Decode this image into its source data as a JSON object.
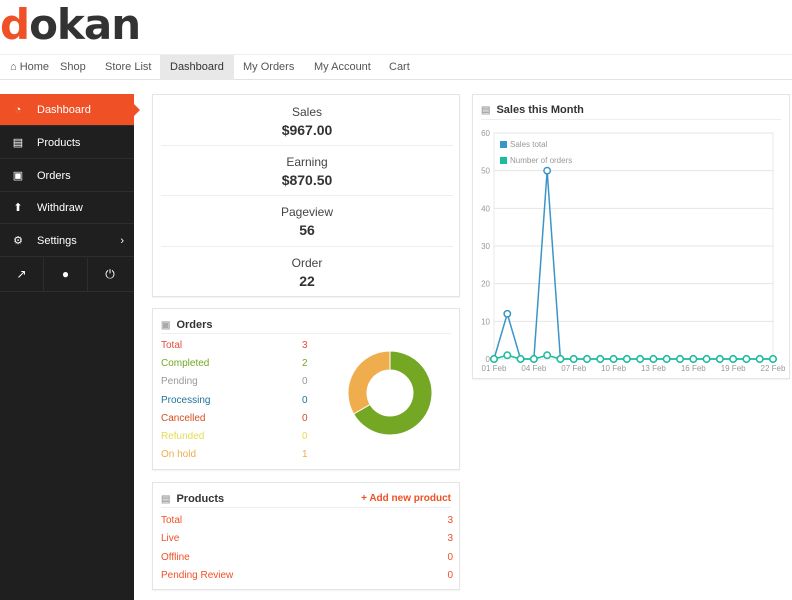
{
  "logo": {
    "first": "d",
    "rest": "okan"
  },
  "nav": [
    {
      "label": "⌂ Home",
      "key": "home"
    },
    {
      "label": "Shop",
      "key": "shop"
    },
    {
      "label": "Store List",
      "key": "store-list"
    },
    {
      "label": "Dashboard",
      "key": "dashboard"
    },
    {
      "label": "My Orders",
      "key": "my-orders"
    },
    {
      "label": "My Account",
      "key": "my-account"
    },
    {
      "label": "Cart",
      "key": "cart"
    }
  ],
  "sidebar": {
    "items": [
      {
        "label": "Dashboard",
        "icon": "dashboard-icon",
        "glyph": "◔"
      },
      {
        "label": "Products",
        "icon": "briefcase-icon",
        "glyph": "▤"
      },
      {
        "label": "Orders",
        "icon": "cart-icon",
        "glyph": "▣"
      },
      {
        "label": "Withdraw",
        "icon": "upload-icon",
        "glyph": "⬆"
      },
      {
        "label": "Settings",
        "icon": "gear-icon",
        "glyph": "⚙"
      }
    ],
    "settings_chevron": "›",
    "bottom_icons": [
      {
        "name": "external-link-icon",
        "glyph": "↗"
      },
      {
        "name": "user-icon",
        "glyph": "●"
      },
      {
        "name": "power-icon",
        "glyph": "⏻"
      }
    ]
  },
  "stats": [
    {
      "label": "Sales",
      "value": "$967.00"
    },
    {
      "label": "Earning",
      "value": "$870.50"
    },
    {
      "label": "Pageview",
      "value": "56"
    },
    {
      "label": "Order",
      "value": "22"
    }
  ],
  "orders": {
    "title": "Orders",
    "rows": [
      {
        "label": "Total",
        "count": "3",
        "color": "#e74c3c"
      },
      {
        "label": "Completed",
        "count": "2",
        "color": "#73a724"
      },
      {
        "label": "Pending",
        "count": "0",
        "color": "#999999"
      },
      {
        "label": "Processing",
        "count": "0",
        "color": "#21759b"
      },
      {
        "label": "Cancelled",
        "count": "0",
        "color": "#d54e21"
      },
      {
        "label": "Refunded",
        "count": "0",
        "color": "#e6db55"
      },
      {
        "label": "On hold",
        "count": "1",
        "color": "#f0ad4e"
      }
    ],
    "donut": [
      {
        "name": "Completed",
        "value": 2,
        "color": "#73a724"
      },
      {
        "name": "On hold",
        "value": 1,
        "color": "#f0ad4e"
      }
    ]
  },
  "products": {
    "title": "Products",
    "add_label": "+ Add new product",
    "rows": [
      {
        "label": "Total",
        "count": "3"
      },
      {
        "label": "Live",
        "count": "3"
      },
      {
        "label": "Offline",
        "count": "0"
      },
      {
        "label": "Pending Review",
        "count": "0"
      }
    ]
  },
  "sales_chart": {
    "title": "Sales this Month"
  },
  "chart_data": {
    "type": "line",
    "ylim": [
      0,
      60
    ],
    "yticks": [
      0,
      10,
      20,
      30,
      40,
      50,
      60
    ],
    "x": [
      "01 Feb",
      "02 Feb",
      "03 Feb",
      "04 Feb",
      "05 Feb",
      "06 Feb",
      "07 Feb",
      "08 Feb",
      "09 Feb",
      "10 Feb",
      "11 Feb",
      "12 Feb",
      "13 Feb",
      "14 Feb",
      "15 Feb",
      "16 Feb",
      "17 Feb",
      "18 Feb",
      "19 Feb",
      "20 Feb",
      "21 Feb",
      "22 Feb"
    ],
    "xtick_labels": [
      "01 Feb",
      "04 Feb",
      "07 Feb",
      "10 Feb",
      "13 Feb",
      "16 Feb",
      "19 Feb",
      "22 Feb"
    ],
    "legend": "top-left",
    "series": [
      {
        "name": "Sales total",
        "color": "#3a95c9",
        "values": [
          0,
          12,
          0,
          0,
          50,
          0,
          0,
          0,
          0,
          0,
          0,
          0,
          0,
          0,
          0,
          0,
          0,
          0,
          0,
          0,
          0,
          0
        ]
      },
      {
        "name": "Number of orders",
        "color": "#1abc9c",
        "values": [
          0,
          1,
          0,
          0,
          1,
          0,
          0,
          0,
          0,
          0,
          0,
          0,
          0,
          0,
          0,
          0,
          0,
          0,
          0,
          0,
          0,
          0
        ]
      }
    ]
  }
}
